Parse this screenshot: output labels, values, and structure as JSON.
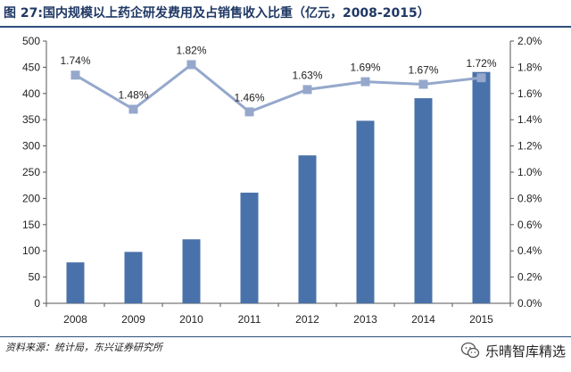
{
  "title": "图 27:国内规模以上药企研发费用及占销售收入比重（亿元，2008-2015）",
  "source": "资料来源：统计局，东兴证券研究所",
  "watermark": "乐晴智库精选",
  "colors": {
    "bar": "#4a72aa",
    "line": "#95a8cc",
    "title": "#1f3864",
    "rule": "#2e4d7b"
  },
  "chart_data": {
    "type": "bar",
    "categories": [
      "2008",
      "2009",
      "2010",
      "2011",
      "2012",
      "2013",
      "2014",
      "2015"
    ],
    "series": [
      {
        "type": "bar",
        "axis": "left",
        "values": [
          78,
          98,
          122,
          211,
          282,
          348,
          391,
          441
        ]
      },
      {
        "type": "line",
        "axis": "right",
        "values": [
          1.74,
          1.48,
          1.82,
          1.46,
          1.63,
          1.69,
          1.67,
          1.72
        ],
        "labels": [
          "1.74%",
          "1.48%",
          "1.82%",
          "1.46%",
          "1.63%",
          "1.69%",
          "1.67%",
          "1.72%"
        ]
      }
    ],
    "y_left": {
      "min": 0,
      "max": 500,
      "step": 50,
      "ticks": [
        "0",
        "50",
        "100",
        "150",
        "200",
        "250",
        "300",
        "350",
        "400",
        "450",
        "500"
      ]
    },
    "y_right": {
      "min": 0,
      "max": 2.0,
      "step": 0.2,
      "ticks": [
        "0.0%",
        "0.2%",
        "0.4%",
        "0.6%",
        "0.8%",
        "1.0%",
        "1.2%",
        "1.4%",
        "1.6%",
        "1.8%",
        "2.0%"
      ]
    },
    "grid": false,
    "legend": "none"
  }
}
